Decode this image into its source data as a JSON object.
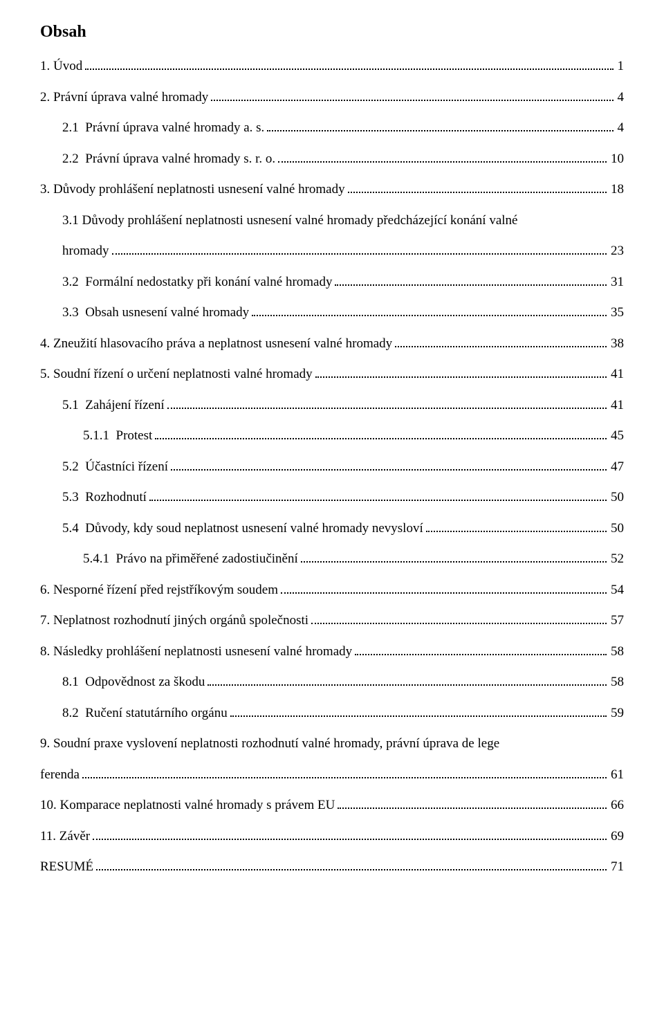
{
  "title": "Obsah",
  "items": [
    {
      "indent": 0,
      "text": "1. Úvod",
      "page": "1"
    },
    {
      "indent": 0,
      "text": "2. Právní úprava valné hromady",
      "page": "4"
    },
    {
      "indent": 1,
      "text": "2.1  Právní úprava valné hromady a. s.",
      "page": "4"
    },
    {
      "indent": 1,
      "text": "2.2  Právní úprava valné hromady s. r. o.",
      "page": "10"
    },
    {
      "indent": 0,
      "text": "3. Důvody prohlášení neplatnosti usnesení valné hromady",
      "page": "18"
    },
    {
      "indent": 1,
      "multiline": true,
      "line1": "3.1  Důvody prohlášení neplatnosti usnesení valné hromady předcházející konání valné",
      "line2": "hromady",
      "page": "23"
    },
    {
      "indent": 1,
      "text": "3.2  Formální nedostatky při konání valné hromady",
      "page": "31"
    },
    {
      "indent": 1,
      "text": "3.3  Obsah usnesení valné hromady",
      "page": "35"
    },
    {
      "indent": 0,
      "text": "4. Zneužití hlasovacího práva a neplatnost usnesení valné hromady",
      "page": "38"
    },
    {
      "indent": 0,
      "text": "5. Soudní řízení o určení neplatnosti valné hromady",
      "page": "41"
    },
    {
      "indent": 1,
      "text": "5.1  Zahájení řízení",
      "page": "41"
    },
    {
      "indent": 2,
      "text": "5.1.1  Protest",
      "page": "45"
    },
    {
      "indent": 1,
      "text": "5.2  Účastníci řízení",
      "page": "47"
    },
    {
      "indent": 1,
      "text": "5.3  Rozhodnutí",
      "page": "50"
    },
    {
      "indent": 1,
      "text": "5.4  Důvody, kdy soud neplatnost usnesení valné hromady nevysloví",
      "page": "50"
    },
    {
      "indent": 2,
      "text": "5.4.1  Právo na přiměřené zadostiučinění",
      "page": "52"
    },
    {
      "indent": 0,
      "text": "6. Nesporné řízení před rejstříkovým soudem",
      "page": "54"
    },
    {
      "indent": 0,
      "text": "7. Neplatnost rozhodnutí jiných orgánů společnosti",
      "page": "57"
    },
    {
      "indent": 0,
      "text": "8. Následky prohlášení neplatnosti usnesení valné hromady",
      "page": "58"
    },
    {
      "indent": 1,
      "text": "8.1  Odpovědnost za škodu",
      "page": "58"
    },
    {
      "indent": 1,
      "text": "8.2  Ručení statutárního orgánu",
      "page": "59"
    },
    {
      "indent": 0,
      "multiline": true,
      "line1": "9. Soudní praxe vyslovení neplatnosti rozhodnutí valné hromady, právní úprava de lege",
      "line2": "ferenda",
      "page": "61"
    },
    {
      "indent": 0,
      "text": "10. Komparace neplatnosti valné hromady s právem EU",
      "page": "66"
    },
    {
      "indent": 0,
      "text": "11. Závěr",
      "page": "69"
    },
    {
      "indent": 0,
      "text": "RESUMÉ",
      "page": "71"
    }
  ]
}
